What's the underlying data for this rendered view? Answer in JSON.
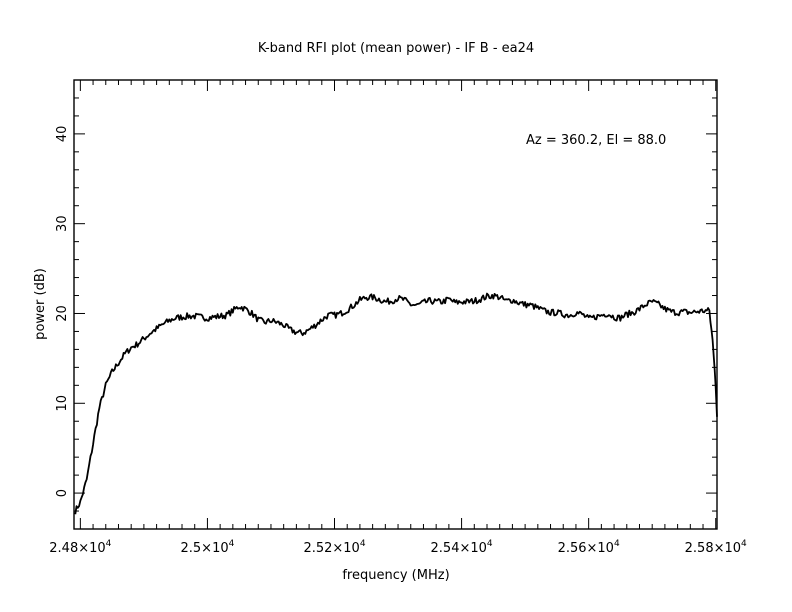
{
  "chart_data": {
    "type": "line",
    "title": "K-band RFI plot (mean power) - IF B - ea24",
    "xlabel": "frequency (MHz)",
    "ylabel": "power (dB)",
    "annotation": "Az = 360.2, El = 88.0",
    "xlim": [
      24790,
      25802
    ],
    "ylim": [
      -4,
      46
    ],
    "x_ticks": [
      {
        "value": 24800,
        "mantissa": "2.48",
        "exp": "4"
      },
      {
        "value": 25000,
        "mantissa": "2.5",
        "exp": "4"
      },
      {
        "value": 25200,
        "mantissa": "2.52",
        "exp": "4"
      },
      {
        "value": 25400,
        "mantissa": "2.54",
        "exp": "4"
      },
      {
        "value": 25600,
        "mantissa": "2.56",
        "exp": "4"
      },
      {
        "value": 25800,
        "mantissa": "2.58",
        "exp": "4"
      }
    ],
    "y_ticks": [
      0,
      10,
      20,
      30,
      40
    ],
    "grid": false,
    "line_color": "#000000",
    "series": [
      {
        "x": [
          24792,
          24800,
          24810,
          24820,
          24830,
          24840,
          24850,
          24860,
          24870,
          24880,
          24890,
          24900,
          24910,
          24920,
          24930,
          24940,
          24950,
          24960,
          24970,
          24980,
          24990,
          25000,
          25010,
          25020,
          25030,
          25040,
          25050,
          25060,
          25070,
          25080,
          25090,
          25100,
          25110,
          25120,
          25130,
          25140,
          25150,
          25160,
          25170,
          25180,
          25190,
          25200,
          25210,
          25220,
          25230,
          25240,
          25250,
          25260,
          25270,
          25280,
          25290,
          25300,
          25310,
          25320,
          25330,
          25340,
          25350,
          25360,
          25370,
          25380,
          25390,
          25400,
          25410,
          25420,
          25430,
          25440,
          25450,
          25460,
          25470,
          25480,
          25490,
          25500,
          25510,
          25520,
          25530,
          25540,
          25550,
          25560,
          25570,
          25580,
          25590,
          25600,
          25610,
          25620,
          25630,
          25640,
          25650,
          25660,
          25670,
          25680,
          25690,
          25700,
          25710,
          25720,
          25730,
          25740,
          25750,
          25760,
          25770,
          25780,
          25790,
          25795,
          25800,
          25802
        ],
        "y": [
          -2.0,
          -1.0,
          1.5,
          5.5,
          9.5,
          12.0,
          13.5,
          14.5,
          15.5,
          16.2,
          16.6,
          17.2,
          17.8,
          18.3,
          18.8,
          19.2,
          19.5,
          19.6,
          19.7,
          19.7,
          19.6,
          19.5,
          19.6,
          19.7,
          19.8,
          20.3,
          20.8,
          20.5,
          20.0,
          19.3,
          19.0,
          19.2,
          19.0,
          18.7,
          18.2,
          17.9,
          17.8,
          18.2,
          18.7,
          19.3,
          19.8,
          19.8,
          20.0,
          20.4,
          20.9,
          21.5,
          21.8,
          21.8,
          21.6,
          21.3,
          21.4,
          21.7,
          21.5,
          21.0,
          20.9,
          21.2,
          21.4,
          21.3,
          21.3,
          21.6,
          21.2,
          21.3,
          21.3,
          21.4,
          21.6,
          21.9,
          22.0,
          21.8,
          21.4,
          21.5,
          21.2,
          21.0,
          20.9,
          20.6,
          20.3,
          20.1,
          20.1,
          19.9,
          19.8,
          20.1,
          19.9,
          19.4,
          19.6,
          19.8,
          20.0,
          19.6,
          19.5,
          19.9,
          20.1,
          20.5,
          21.0,
          21.3,
          21.0,
          20.5,
          20.2,
          20.1,
          20.2,
          20.1,
          20.2,
          20.3,
          20.3,
          17.0,
          12.0,
          8.5
        ]
      }
    ]
  }
}
